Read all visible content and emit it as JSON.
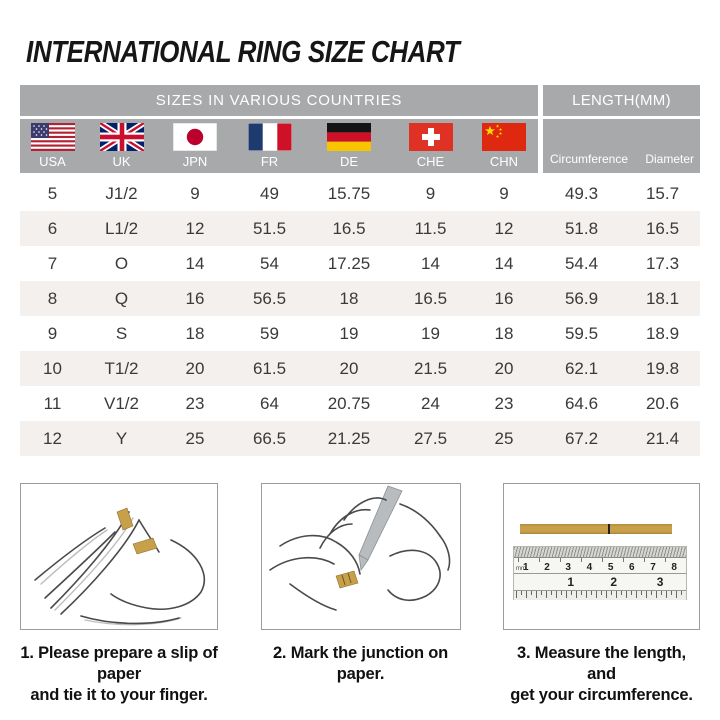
{
  "page": {
    "title": "INTERNATIONAL RING SIZE CHART"
  },
  "colors": {
    "header_gray": "#a8a9ab",
    "row_alt": "#f4f0ed",
    "gold": "#c8a04a"
  },
  "table": {
    "group_headers": {
      "sizes": "SIZES IN VARIOUS COUNTRIES",
      "length": "LENGTH(MM)"
    },
    "countries": [
      "USA",
      "UK",
      "JPN",
      "FR",
      "DE",
      "CHE",
      "CHN"
    ],
    "length_columns": [
      "Circumference",
      "Diameter"
    ],
    "rows": [
      [
        "5",
        "J1/2",
        "9",
        "49",
        "15.75",
        "9",
        "9",
        "49.3",
        "15.7"
      ],
      [
        "6",
        "L1/2",
        "12",
        "51.5",
        "16.5",
        "11.5",
        "12",
        "51.8",
        "16.5"
      ],
      [
        "7",
        "O",
        "14",
        "54",
        "17.25",
        "14",
        "14",
        "54.4",
        "17.3"
      ],
      [
        "8",
        "Q",
        "16",
        "56.5",
        "18",
        "16.5",
        "16",
        "56.9",
        "18.1"
      ],
      [
        "9",
        "S",
        "18",
        "59",
        "19",
        "19",
        "18",
        "59.5",
        "18.9"
      ],
      [
        "10",
        "T1/2",
        "20",
        "61.5",
        "20",
        "21.5",
        "20",
        "62.1",
        "19.8"
      ],
      [
        "11",
        "V1/2",
        "23",
        "64",
        "20.75",
        "24",
        "23",
        "64.6",
        "20.6"
      ],
      [
        "12",
        "Y",
        "25",
        "66.5",
        "21.25",
        "27.5",
        "25",
        "67.2",
        "21.4"
      ]
    ]
  },
  "instructions": {
    "steps": [
      {
        "line1": "1. Please prepare a slip of paper",
        "line2": "and tie it to your finger."
      },
      {
        "line1": "2. Mark the junction on paper.",
        "line2": ""
      },
      {
        "line1": "3. Measure the length, and",
        "line2": "get your circumference."
      }
    ],
    "ruler": {
      "unit_label": "mm",
      "cm_numbers": [
        "1",
        "2",
        "3",
        "4",
        "5",
        "6",
        "7",
        "8"
      ],
      "inch_numbers": [
        "1",
        "2",
        "3"
      ]
    }
  }
}
